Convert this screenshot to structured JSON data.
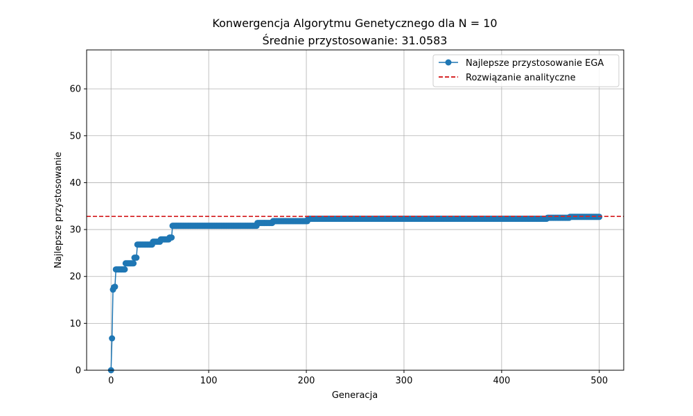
{
  "chart_data": {
    "type": "line",
    "title": "Konwergencja Algorytmu Genetycznego dla N = 10",
    "subtitle": "Średnie przystosowanie: 31.0583",
    "xlabel": "Generacja",
    "ylabel": "Najlepsze przystosowanie",
    "xlim": [
      -25,
      525
    ],
    "ylim": [
      0,
      68.3
    ],
    "xticks": [
      0,
      100,
      200,
      300,
      400,
      500
    ],
    "yticks": [
      0,
      10,
      20,
      30,
      40,
      50,
      60
    ],
    "grid": true,
    "legend_position": "top-right",
    "colors": {
      "series": "#1f77b4",
      "reference": "#d62728",
      "grid": "#b0b0b0"
    },
    "series": [
      {
        "name": "Najlepsze przystosowanie EGA",
        "style": "line-with-circle-markers",
        "steps": [
          [
            0,
            0
          ],
          [
            1,
            6.8
          ],
          [
            2,
            17.2
          ],
          [
            3,
            17.7
          ],
          [
            4,
            17.8
          ],
          [
            5,
            21.5
          ],
          [
            15,
            22.8
          ],
          [
            24,
            24.0
          ],
          [
            27,
            26.8
          ],
          [
            43,
            27.4
          ],
          [
            51,
            27.9
          ],
          [
            60,
            28.3
          ],
          [
            63,
            30.8
          ],
          [
            150,
            31.4
          ],
          [
            166,
            31.8
          ],
          [
            202,
            32.3
          ],
          [
            447,
            32.5
          ],
          [
            470,
            32.7
          ]
        ],
        "last_x": 500
      },
      {
        "name": "Rozwiązanie analityczne",
        "style": "dashed-horizontal",
        "y": 32.8
      }
    ]
  }
}
